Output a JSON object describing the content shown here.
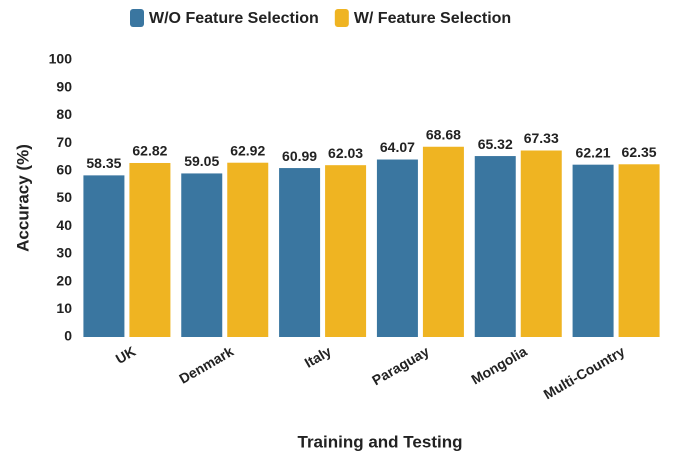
{
  "chart_data": {
    "type": "bar",
    "xlabel": "Training and Testing",
    "ylabel": "Accuracy (%)",
    "categories": [
      "UK",
      "Denmark",
      "Italy",
      "Paraguay",
      "Mongolia",
      "Multi-Country"
    ],
    "series": [
      {
        "name": "W/O Feature Selection",
        "color": "#3a76a0",
        "values": [
          58.35,
          59.05,
          60.99,
          64.07,
          65.32,
          62.21
        ]
      },
      {
        "name": "W/ Feature Selection",
        "color": "#efb422",
        "values": [
          62.82,
          62.92,
          62.03,
          68.68,
          67.33,
          62.35
        ]
      }
    ],
    "ylim": [
      0,
      100
    ],
    "yticks": [
      0,
      10,
      20,
      30,
      40,
      50,
      60,
      70,
      80,
      90,
      100
    ],
    "grid": false,
    "legend": "top"
  }
}
